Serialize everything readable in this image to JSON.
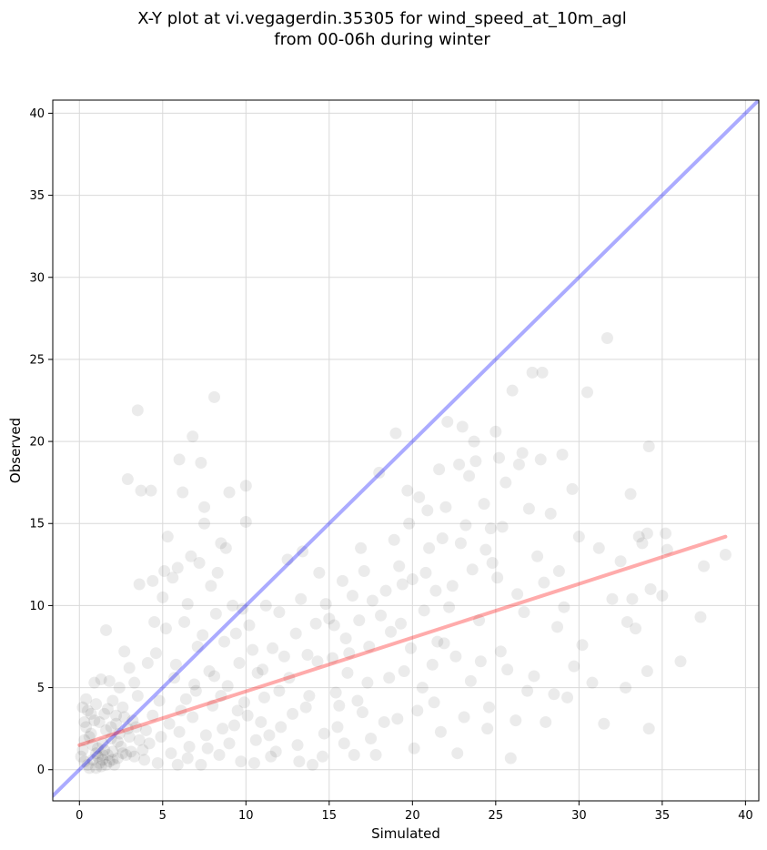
{
  "chart_data": {
    "type": "scatter",
    "title_lines": [
      "X-Y plot at vi.vegagerdin.35305 for wind_speed_at_10m_agl",
      "from 00-06h during winter"
    ],
    "xlabel": "Simulated",
    "ylabel": "Observed",
    "xlim": [
      -1.6,
      40.8
    ],
    "ylim": [
      -1.9,
      40.8
    ],
    "xticks": [
      0,
      5,
      10,
      15,
      20,
      25,
      30,
      35,
      40
    ],
    "yticks": [
      0,
      5,
      10,
      15,
      20,
      25,
      30,
      35,
      40
    ],
    "grid": true,
    "point_color": "#000000",
    "point_opacity": 0.08,
    "identity_line": {
      "color": "#0000ff",
      "opacity": 0.33,
      "from": [
        -1.6,
        -1.6
      ],
      "to": [
        40.8,
        40.8
      ]
    },
    "fit_line": {
      "color": "#ff0000",
      "opacity": 0.33,
      "from": [
        0.0,
        1.5
      ],
      "to": [
        38.8,
        14.2
      ]
    },
    "points": [
      [
        0.5,
        0.3
      ],
      [
        0.8,
        0.6
      ],
      [
        1.0,
        1.0
      ],
      [
        1.2,
        0.4
      ],
      [
        1.5,
        1.2
      ],
      [
        0.3,
        1.8
      ],
      [
        0.7,
        2.2
      ],
      [
        1.1,
        0.8
      ],
      [
        1.4,
        1.6
      ],
      [
        1.8,
        0.5
      ],
      [
        2.0,
        1.1
      ],
      [
        2.3,
        0.7
      ],
      [
        0.4,
        2.6
      ],
      [
        0.9,
        3.0
      ],
      [
        1.6,
        2.4
      ],
      [
        1.9,
        1.9
      ],
      [
        2.2,
        2.8
      ],
      [
        2.5,
        1.4
      ],
      [
        2.8,
        0.9
      ],
      [
        3.0,
        2.0
      ],
      [
        0.6,
        0.1
      ],
      [
        1.3,
        0.2
      ],
      [
        1.7,
        0.9
      ],
      [
        2.1,
        0.3
      ],
      [
        2.4,
        2.2
      ],
      [
        2.7,
        3.2
      ],
      [
        3.1,
        1.1
      ],
      [
        3.4,
        2.6
      ],
      [
        0.2,
        1.2
      ],
      [
        0.5,
        3.6
      ],
      [
        1.0,
        4.0
      ],
      [
        1.5,
        3.4
      ],
      [
        2.0,
        4.2
      ],
      [
        2.6,
        3.8
      ],
      [
        3.2,
        3.0
      ],
      [
        3.6,
        1.8
      ],
      [
        4.0,
        2.4
      ],
      [
        4.4,
        3.3
      ],
      [
        1.2,
        2.9
      ],
      [
        0.8,
        1.5
      ],
      [
        1.4,
        0.6
      ],
      [
        1.9,
        2.6
      ],
      [
        2.3,
        1.7
      ],
      [
        0.3,
        0.5
      ],
      [
        0.6,
        2.0
      ],
      [
        1.1,
        1.3
      ],
      [
        1.6,
        0.3
      ],
      [
        2.9,
        2.5
      ],
      [
        3.3,
        0.8
      ],
      [
        3.8,
        1.2
      ],
      [
        0.2,
        3.8
      ],
      [
        0.4,
        4.3
      ],
      [
        0.9,
        5.3
      ],
      [
        1.3,
        5.5
      ],
      [
        1.6,
        8.5
      ],
      [
        1.8,
        5.4
      ],
      [
        2.4,
        5.0
      ],
      [
        2.7,
        7.2
      ],
      [
        3.0,
        6.2
      ],
      [
        3.3,
        5.3
      ],
      [
        2.9,
        17.7
      ],
      [
        3.5,
        21.9
      ],
      [
        3.7,
        17.0
      ],
      [
        4.3,
        17.0
      ],
      [
        3.6,
        11.3
      ],
      [
        4.4,
        11.5
      ],
      [
        4.5,
        9.0
      ],
      [
        5.0,
        10.5
      ],
      [
        5.3,
        14.2
      ],
      [
        5.1,
        12.1
      ],
      [
        5.6,
        11.7
      ],
      [
        5.9,
        12.3
      ],
      [
        6.0,
        18.9
      ],
      [
        6.2,
        16.9
      ],
      [
        6.8,
        20.3
      ],
      [
        7.3,
        18.7
      ],
      [
        7.5,
        16.0
      ],
      [
        7.5,
        15.0
      ],
      [
        8.1,
        22.7
      ],
      [
        8.5,
        13.8
      ],
      [
        8.8,
        13.5
      ],
      [
        9.0,
        16.9
      ],
      [
        9.8,
        9.8
      ],
      [
        10.0,
        15.1
      ],
      [
        10.0,
        17.3
      ],
      [
        8.3,
        12.0
      ],
      [
        7.9,
        11.2
      ],
      [
        6.7,
        13.0
      ],
      [
        7.2,
        12.6
      ],
      [
        6.5,
        10.1
      ],
      [
        4.1,
        6.5
      ],
      [
        4.6,
        7.1
      ],
      [
        5.2,
        8.6
      ],
      [
        5.8,
        6.4
      ],
      [
        6.3,
        9.0
      ],
      [
        6.9,
        5.2
      ],
      [
        7.4,
        8.2
      ],
      [
        7.8,
        6.0
      ],
      [
        8.2,
        9.5
      ],
      [
        8.7,
        7.8
      ],
      [
        9.2,
        10.0
      ],
      [
        9.6,
        6.5
      ],
      [
        10.2,
        8.8
      ],
      [
        10.7,
        5.9
      ],
      [
        11.2,
        10.0
      ],
      [
        11.6,
        7.4
      ],
      [
        12.0,
        4.8
      ],
      [
        12.5,
        12.8
      ],
      [
        13.0,
        8.3
      ],
      [
        13.4,
        13.3
      ],
      [
        4.8,
        4.2
      ],
      [
        5.4,
        2.8
      ],
      [
        6.1,
        3.6
      ],
      [
        6.6,
        1.4
      ],
      [
        7.0,
        4.8
      ],
      [
        7.6,
        2.1
      ],
      [
        8.0,
        3.9
      ],
      [
        8.4,
        0.9
      ],
      [
        8.9,
        5.1
      ],
      [
        9.3,
        2.7
      ],
      [
        9.7,
        0.5
      ],
      [
        10.1,
        3.3
      ],
      [
        10.6,
        1.8
      ],
      [
        11.1,
        4.4
      ],
      [
        11.5,
        0.8
      ],
      [
        12.1,
        2.6
      ],
      [
        12.6,
        5.6
      ],
      [
        13.1,
        1.5
      ],
      [
        13.6,
        3.8
      ],
      [
        14.0,
        0.3
      ],
      [
        14.3,
        6.6
      ],
      [
        14.7,
        2.2
      ],
      [
        15.0,
        9.2
      ],
      [
        15.4,
        4.7
      ],
      [
        15.8,
        11.5
      ],
      [
        16.2,
        7.1
      ],
      [
        16.5,
        0.9
      ],
      [
        16.9,
        13.5
      ],
      [
        17.3,
        5.3
      ],
      [
        17.6,
        10.3
      ],
      [
        18.0,
        18.1
      ],
      [
        18.3,
        2.9
      ],
      [
        18.7,
        8.4
      ],
      [
        19.0,
        20.5
      ],
      [
        19.2,
        12.4
      ],
      [
        19.5,
        6.0
      ],
      [
        19.8,
        15.0
      ],
      [
        20.1,
        1.3
      ],
      [
        20.4,
        16.6
      ],
      [
        20.7,
        9.7
      ],
      [
        21.0,
        13.5
      ],
      [
        21.3,
        4.1
      ],
      [
        21.6,
        18.3
      ],
      [
        21.9,
        7.7
      ],
      [
        22.1,
        21.2
      ],
      [
        22.4,
        11.2
      ],
      [
        22.7,
        1.0
      ],
      [
        23.0,
        20.9
      ],
      [
        23.2,
        14.9
      ],
      [
        23.5,
        5.4
      ],
      [
        23.8,
        18.8
      ],
      [
        24.0,
        9.1
      ],
      [
        24.3,
        16.2
      ],
      [
        24.5,
        2.5
      ],
      [
        24.8,
        12.6
      ],
      [
        25.0,
        20.6
      ],
      [
        25.3,
        7.2
      ],
      [
        25.6,
        17.5
      ],
      [
        25.9,
        0.7
      ],
      [
        26.0,
        23.1
      ],
      [
        26.3,
        10.7
      ],
      [
        26.6,
        19.3
      ],
      [
        26.9,
        4.8
      ],
      [
        27.2,
        24.2
      ],
      [
        27.5,
        13.0
      ],
      [
        27.8,
        24.2
      ],
      [
        28.0,
        2.9
      ],
      [
        28.3,
        15.6
      ],
      [
        28.7,
        8.7
      ],
      [
        29.0,
        19.2
      ],
      [
        29.3,
        4.4
      ],
      [
        29.6,
        17.1
      ],
      [
        30.0,
        14.2
      ],
      [
        30.2,
        7.6
      ],
      [
        30.5,
        23.0
      ],
      [
        30.8,
        5.3
      ],
      [
        31.2,
        13.5
      ],
      [
        31.5,
        2.8
      ],
      [
        31.7,
        26.3
      ],
      [
        32.0,
        10.4
      ],
      [
        32.5,
        12.7
      ],
      [
        32.8,
        5.0
      ],
      [
        33.1,
        16.8
      ],
      [
        33.4,
        8.6
      ],
      [
        33.8,
        13.8
      ],
      [
        34.1,
        6.0
      ],
      [
        34.2,
        19.7
      ],
      [
        34.3,
        11.0
      ],
      [
        34.2,
        2.5
      ],
      [
        35.2,
        14.4
      ],
      [
        35.3,
        13.4
      ],
      [
        35.0,
        10.6
      ],
      [
        36.1,
        6.6
      ],
      [
        37.3,
        9.3
      ],
      [
        37.5,
        12.4
      ],
      [
        38.8,
        13.1
      ],
      [
        33.6,
        14.2
      ],
      [
        34.1,
        14.4
      ],
      [
        33.2,
        10.4
      ],
      [
        32.9,
        9.0
      ],
      [
        14.8,
        10.1
      ],
      [
        15.5,
        2.6
      ],
      [
        16.0,
        8.0
      ],
      [
        16.7,
        4.2
      ],
      [
        17.1,
        12.1
      ],
      [
        17.5,
        1.9
      ],
      [
        18.1,
        9.4
      ],
      [
        18.6,
        5.6
      ],
      [
        19.1,
        3.1
      ],
      [
        19.4,
        11.3
      ],
      [
        19.9,
        7.4
      ],
      [
        20.3,
        3.6
      ],
      [
        20.8,
        12.0
      ],
      [
        21.2,
        6.4
      ],
      [
        21.7,
        2.3
      ],
      [
        22.2,
        9.9
      ],
      [
        22.6,
        6.9
      ],
      [
        23.1,
        3.2
      ],
      [
        23.6,
        12.2
      ],
      [
        24.1,
        6.6
      ],
      [
        24.6,
        3.8
      ],
      [
        25.1,
        11.7
      ],
      [
        25.7,
        6.1
      ],
      [
        26.2,
        3.0
      ],
      [
        26.7,
        9.6
      ],
      [
        27.3,
        5.7
      ],
      [
        27.9,
        11.4
      ],
      [
        28.5,
        4.6
      ],
      [
        29.1,
        9.9
      ],
      [
        29.7,
        6.3
      ],
      [
        12.3,
        6.9
      ],
      [
        12.8,
        3.4
      ],
      [
        13.3,
        10.4
      ],
      [
        13.8,
        4.5
      ],
      [
        14.2,
        8.9
      ],
      [
        14.6,
        0.8
      ],
      [
        15.2,
        6.8
      ],
      [
        15.6,
        3.9
      ],
      [
        16.4,
        10.6
      ],
      [
        17.0,
        3.5
      ],
      [
        11.0,
        6.1
      ],
      [
        11.4,
        2.1
      ],
      [
        10.4,
        7.3
      ],
      [
        9.9,
        4.1
      ],
      [
        9.4,
        8.3
      ],
      [
        8.6,
        2.5
      ],
      [
        8.1,
        5.7
      ],
      [
        7.1,
        7.5
      ],
      [
        6.4,
        4.3
      ],
      [
        5.7,
        5.6
      ],
      [
        5.5,
        1.0
      ],
      [
        6.0,
        2.3
      ],
      [
        6.8,
        3.2
      ],
      [
        7.7,
        1.3
      ],
      [
        9.0,
        1.6
      ],
      [
        10.5,
        0.4
      ],
      [
        11.8,
        1.1
      ],
      [
        13.2,
        0.5
      ],
      [
        15.9,
        1.6
      ],
      [
        17.8,
        0.9
      ],
      [
        20.6,
        5.0
      ],
      [
        21.4,
        10.9
      ],
      [
        22.9,
        13.8
      ],
      [
        23.4,
        17.9
      ],
      [
        24.7,
        14.7
      ],
      [
        25.4,
        14.8
      ],
      [
        26.4,
        18.6
      ],
      [
        27.0,
        15.9
      ],
      [
        27.7,
        18.9
      ],
      [
        28.8,
        12.1
      ],
      [
        18.9,
        14.0
      ],
      [
        19.7,
        17.0
      ],
      [
        20.0,
        11.6
      ],
      [
        20.9,
        15.8
      ],
      [
        21.8,
        14.1
      ],
      [
        22.0,
        16.0
      ],
      [
        22.8,
        18.6
      ],
      [
        23.7,
        20.0
      ],
      [
        24.4,
        13.4
      ],
      [
        25.2,
        19.0
      ],
      [
        1.0,
        0.1
      ],
      [
        1.4,
        0.9
      ],
      [
        2.0,
        0.6
      ],
      [
        2.6,
        1.0
      ],
      [
        0.1,
        0.8
      ],
      [
        0.3,
        2.9
      ],
      [
        0.7,
        3.4
      ],
      [
        1.7,
        3.7
      ],
      [
        2.2,
        3.3
      ],
      [
        3.5,
        4.5
      ],
      [
        3.9,
        0.6
      ],
      [
        4.2,
        1.6
      ],
      [
        4.7,
        0.4
      ],
      [
        4.9,
        2.0
      ],
      [
        5.9,
        0.3
      ],
      [
        6.5,
        0.7
      ],
      [
        7.3,
        0.3
      ],
      [
        8.5,
        4.5
      ],
      [
        9.5,
        3.6
      ],
      [
        10.9,
        2.9
      ],
      [
        12.0,
        9.6
      ],
      [
        13.7,
        7.0
      ],
      [
        14.4,
        12.0
      ],
      [
        15.3,
        8.8
      ],
      [
        16.1,
        5.9
      ],
      [
        16.8,
        9.1
      ],
      [
        17.4,
        7.5
      ],
      [
        18.4,
        10.9
      ],
      [
        19.3,
        8.9
      ],
      [
        21.5,
        7.8
      ]
    ]
  }
}
